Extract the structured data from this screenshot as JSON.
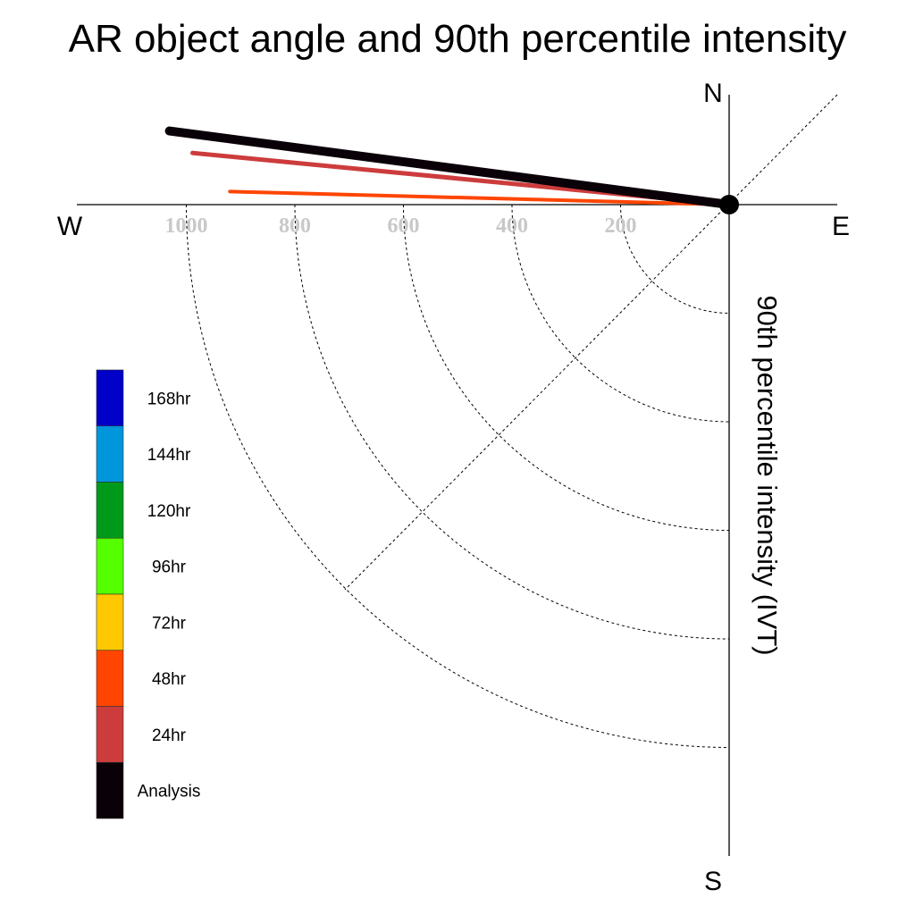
{
  "chart_data": {
    "type": "polar-line",
    "title": "AR object angle and 90th percentile intensity",
    "ylabel": "90th percentile intensity (IVT)",
    "compass": {
      "north": "N",
      "south": "S",
      "east": "E",
      "west": "W"
    },
    "radial_ticks": [
      "200",
      "400",
      "600",
      "800",
      "1000"
    ],
    "radial_values": [
      200,
      400,
      600,
      800,
      1000
    ],
    "rmax": 1000,
    "legend": [
      {
        "label": "168hr",
        "color": "#0000c8"
      },
      {
        "label": "144hr",
        "color": "#0096dc"
      },
      {
        "label": "120hr",
        "color": "#009a1a"
      },
      {
        "label": "96hr",
        "color": "#55ff00"
      },
      {
        "label": "72hr",
        "color": "#ffc800"
      },
      {
        "label": "48hr",
        "color": "#ff4500"
      },
      {
        "label": "24hr",
        "color": "#cd3c3c"
      },
      {
        "label": "Analysis",
        "color": "#0a0008"
      }
    ],
    "series": [
      {
        "name": "Analysis",
        "angle_deg": 187.5,
        "intensity": 1040,
        "color": "#0a0008"
      },
      {
        "name": "24hr",
        "angle_deg": 185.5,
        "intensity": 993,
        "color": "#cd3c3c"
      },
      {
        "name": "48hr",
        "angle_deg": 181.5,
        "intensity": 920,
        "color": "#ff4500"
      }
    ]
  }
}
